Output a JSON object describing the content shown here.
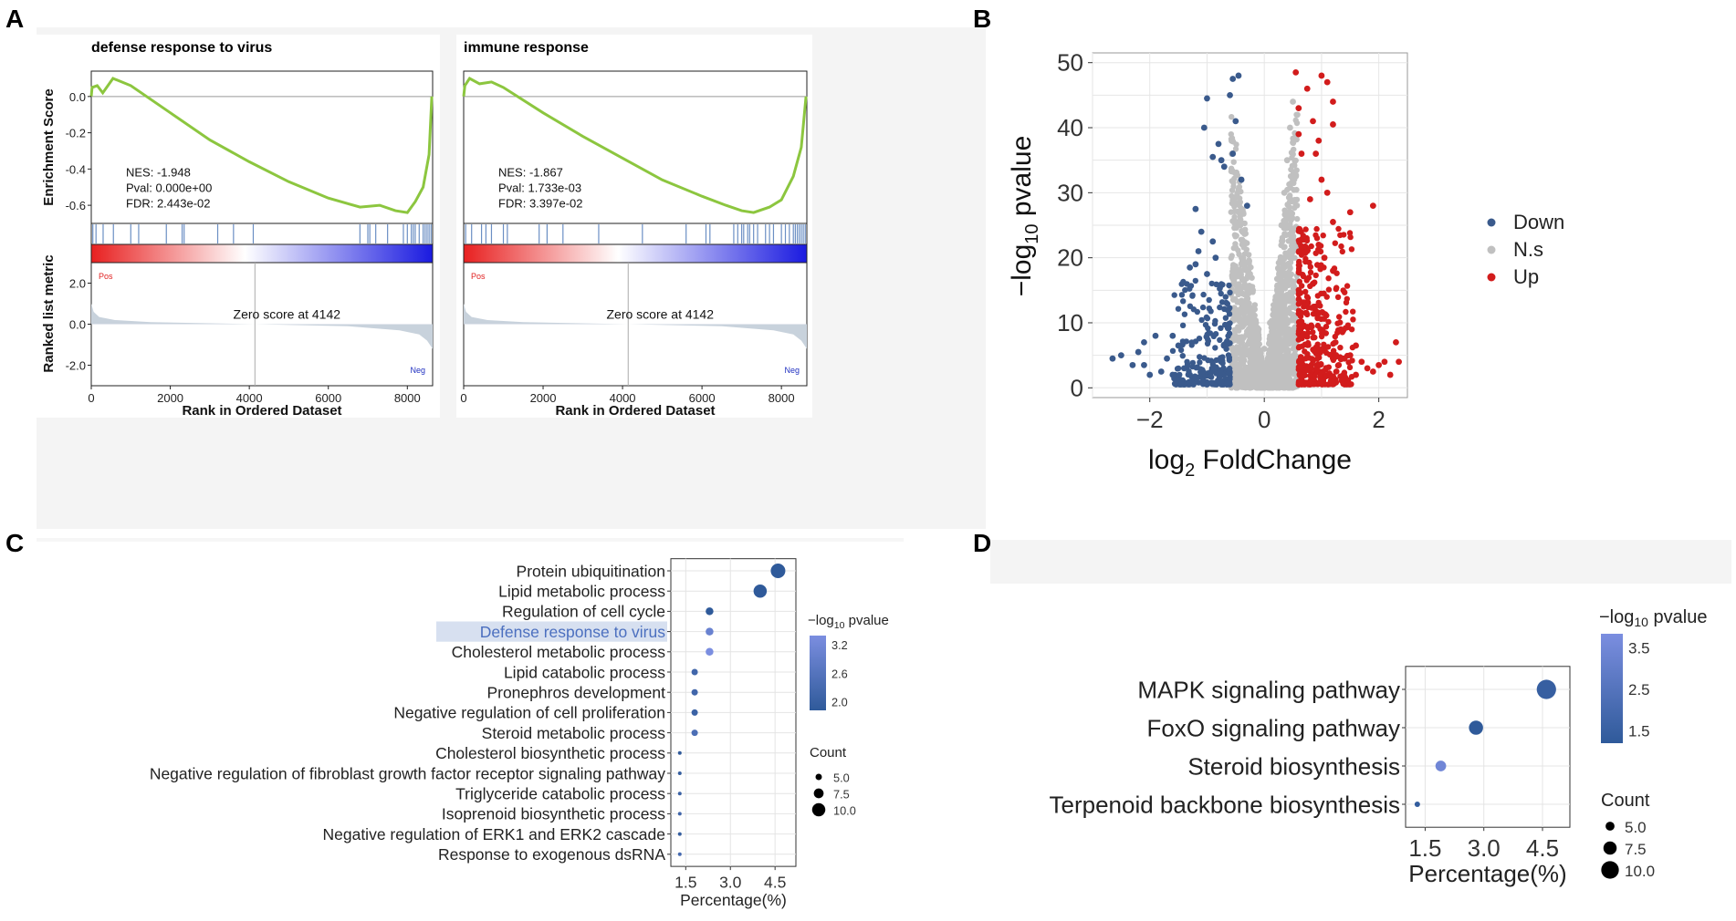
{
  "panel_labels": {
    "a": "A",
    "b": "B",
    "c": "C",
    "d": "D"
  },
  "colors": {
    "gsea_line": "#8cc63f",
    "down": "#3a5a8c",
    "ns": "#c0c0c0",
    "up": "#d21c1c",
    "pos_text": "#e02020",
    "neg_text": "#2030c0",
    "ranked_fill": "#c8d2dc",
    "highlight": "#d7e0f0",
    "dot_light": "#7b8ee0",
    "dot_dark": "#2f5a9a"
  },
  "chart_data": [
    {
      "type": "line",
      "panel": "A-left",
      "title": "defense response to virus",
      "ylabel": "Enrichment Score",
      "ylabel2": "Ranked list metric",
      "xlabel": "Rank in Ordered Dataset",
      "xlim": [
        0,
        8640
      ],
      "ylim": [
        -0.7,
        0.14
      ],
      "xticks": [
        "0",
        "2000",
        "4000",
        "6000",
        "8000"
      ],
      "yticks": [
        "0.0",
        "-0.2",
        "-0.4",
        "-0.6"
      ],
      "rank_yticks": [
        "2.0",
        "0.0",
        "-2.0"
      ],
      "stats": [
        "NES: -1.948",
        "Pval: 0.000e+00",
        "FDR: 2.443e-02"
      ],
      "pos_label": "Pos",
      "neg_label": "Neg",
      "zero_score": "Zero score at 4142",
      "zero_rank": 4142,
      "curve": [
        [
          0,
          0
        ],
        [
          20,
          0.05
        ],
        [
          150,
          0.06
        ],
        [
          290,
          0.02
        ],
        [
          550,
          0.1
        ],
        [
          1000,
          0.06
        ],
        [
          2000,
          -0.09
        ],
        [
          3000,
          -0.24
        ],
        [
          4000,
          -0.36
        ],
        [
          5000,
          -0.47
        ],
        [
          6000,
          -0.56
        ],
        [
          6800,
          -0.61
        ],
        [
          7300,
          -0.6
        ],
        [
          7700,
          -0.63
        ],
        [
          8000,
          -0.64
        ],
        [
          8200,
          -0.58
        ],
        [
          8400,
          -0.5
        ],
        [
          8550,
          -0.32
        ],
        [
          8620,
          0.0
        ]
      ],
      "hits": [
        40,
        120,
        300,
        560,
        1000,
        1200,
        1900,
        2300,
        2350,
        3200,
        3600,
        4100,
        6800,
        7000,
        7050,
        7200,
        7500,
        7900,
        8000,
        8100,
        8150,
        8200,
        8300,
        8400,
        8450,
        8500,
        8550,
        8600
      ]
    },
    {
      "type": "line",
      "panel": "A-right",
      "title": "immune response",
      "ylabel": "",
      "ylabel2": "",
      "xlabel": "Rank in Ordered Dataset",
      "xlim": [
        0,
        8640
      ],
      "ylim": [
        -0.7,
        0.14
      ],
      "xticks": [
        "0",
        "2000",
        "4000",
        "6000",
        "8000"
      ],
      "yticks": [],
      "rank_yticks": [],
      "stats": [
        "NES: -1.867",
        "Pval: 1.733e-03",
        "FDR: 3.397e-02"
      ],
      "pos_label": "Pos",
      "neg_label": "Neg",
      "zero_score": "Zero score at 4142",
      "zero_rank": 4142,
      "curve": [
        [
          0,
          0
        ],
        [
          30,
          0.06
        ],
        [
          150,
          0.1
        ],
        [
          400,
          0.07
        ],
        [
          700,
          0.08
        ],
        [
          1000,
          0.05
        ],
        [
          2000,
          -0.09
        ],
        [
          3000,
          -0.22
        ],
        [
          4000,
          -0.34
        ],
        [
          5000,
          -0.46
        ],
        [
          6000,
          -0.55
        ],
        [
          6600,
          -0.6
        ],
        [
          7000,
          -0.63
        ],
        [
          7300,
          -0.64
        ],
        [
          7700,
          -0.61
        ],
        [
          8000,
          -0.57
        ],
        [
          8300,
          -0.44
        ],
        [
          8500,
          -0.28
        ],
        [
          8620,
          0.0
        ]
      ],
      "hits": [
        50,
        200,
        450,
        560,
        700,
        1000,
        1100,
        1900,
        2100,
        2500,
        3400,
        4500,
        5600,
        6100,
        6200,
        6800,
        6900,
        7000,
        7050,
        7150,
        7200,
        7300,
        7400,
        7600,
        7700,
        7800,
        8000,
        8100,
        8200,
        8300,
        8350,
        8400,
        8450,
        8500,
        8550,
        8600
      ]
    },
    {
      "type": "scatter",
      "panel": "B",
      "xlabel_main": "log",
      "xlabel_sub": "2",
      "xlabel_rest": " FoldChange",
      "ylabel_pre": "−log",
      "ylabel_sub": "10",
      "ylabel_rest": " pvalue",
      "xlim": [
        -3,
        2.5
      ],
      "ylim": [
        -1.5,
        51.5
      ],
      "xticks": [
        -2,
        0,
        2
      ],
      "yticks": [
        0,
        10,
        20,
        30,
        40,
        50
      ],
      "xtick_labels": [
        "−2",
        "0",
        "2"
      ],
      "ytick_labels": [
        "0",
        "10",
        "20",
        "30",
        "40",
        "50"
      ],
      "legend": [
        "Down",
        "N.s",
        "Up"
      ],
      "highlights": {
        "down": [
          [
            -0.55,
            47.5
          ],
          [
            -0.45,
            48
          ],
          [
            -0.6,
            45
          ],
          [
            -0.5,
            41
          ],
          [
            -0.55,
            36
          ],
          [
            -0.7,
            34
          ],
          [
            -0.4,
            32
          ],
          [
            -0.3,
            28
          ],
          [
            -1.0,
            44.5
          ],
          [
            -1.05,
            40
          ],
          [
            -0.8,
            37.5
          ],
          [
            -0.75,
            35
          ],
          [
            -0.9,
            35.5
          ],
          [
            -1.2,
            27.5
          ],
          [
            -1.1,
            24
          ],
          [
            -0.9,
            22.5
          ],
          [
            -1.15,
            21
          ],
          [
            -1.2,
            19
          ],
          [
            -1.3,
            18.5
          ],
          [
            -0.85,
            20
          ],
          [
            -1.0,
            17.5
          ]
        ],
        "up": [
          [
            0.55,
            48.5
          ],
          [
            0.6,
            43
          ],
          [
            0.6,
            39
          ],
          [
            0.75,
            46
          ],
          [
            0.85,
            41
          ],
          [
            0.65,
            36
          ],
          [
            0.95,
            38
          ],
          [
            1.0,
            48
          ],
          [
            1.1,
            47
          ],
          [
            1.2,
            44
          ],
          [
            1.2,
            40.5
          ],
          [
            0.9,
            36
          ],
          [
            1.0,
            32
          ],
          [
            1.1,
            30
          ],
          [
            0.8,
            29
          ],
          [
            1.9,
            28
          ],
          [
            1.5,
            27
          ],
          [
            1.2,
            25.5
          ],
          [
            0.95,
            22
          ],
          [
            1.05,
            20
          ],
          [
            1.2,
            18
          ],
          [
            0.85,
            16
          ],
          [
            2.3,
            7
          ],
          [
            2.35,
            4
          ]
        ],
        "ns": [
          [
            -0.1,
            9
          ],
          [
            0.1,
            10
          ],
          [
            0.0,
            6
          ],
          [
            0.3,
            25
          ],
          [
            0.35,
            30
          ],
          [
            0.4,
            35
          ],
          [
            0.45,
            40
          ],
          [
            0.5,
            44
          ],
          [
            -0.35,
            22
          ],
          [
            -0.45,
            27
          ],
          [
            0.3,
            20
          ],
          [
            -0.2,
            15
          ],
          [
            0.2,
            14
          ]
        ],
        "down_far": [
          [
            -2.65,
            4.5
          ],
          [
            -2.5,
            5
          ],
          [
            -2.3,
            3.5
          ],
          [
            -2.2,
            5.5
          ],
          [
            -2.1,
            7
          ],
          [
            -1.9,
            8
          ],
          [
            -1.6,
            8
          ],
          [
            -1.5,
            6.5
          ],
          [
            -1.4,
            3
          ],
          [
            -1.8,
            2.5
          ],
          [
            -2.0,
            2
          ],
          [
            -1.6,
            2
          ],
          [
            -1.3,
            2
          ],
          [
            -1.2,
            1.5
          ],
          [
            -2.1,
            3.5
          ],
          [
            -1.7,
            4.5
          ]
        ],
        "up_far": [
          [
            1.5,
            5
          ],
          [
            1.7,
            4
          ],
          [
            1.8,
            3
          ],
          [
            1.9,
            2.5
          ],
          [
            2.0,
            3.5
          ],
          [
            2.2,
            2
          ],
          [
            1.6,
            2
          ],
          [
            1.4,
            4.5
          ],
          [
            1.3,
            3.5
          ],
          [
            1.6,
            6.5
          ],
          [
            2.1,
            4
          ]
        ]
      }
    },
    {
      "type": "scatter",
      "panel": "C",
      "xlabel": "Percentage(%)",
      "xlim": [
        1.0,
        5.2
      ],
      "xticks": [
        "1.5",
        "3.0",
        "4.5"
      ],
      "xtick_values": [
        1.5,
        3.0,
        4.5
      ],
      "legend_color_title_pre": "−log",
      "legend_color_title_sub": "10",
      "legend_color_title_rest": " pvalue",
      "legend_color_ticks": [
        "3.2",
        "2.6",
        "2.0"
      ],
      "legend_size_title": "Count",
      "legend_size_ticks": [
        "5.0",
        "7.5",
        "10.0"
      ],
      "highlighted_category": "Defense response to virus",
      "categories": [
        "Protein ubiquitination",
        "Lipid metabolic process",
        "Regulation of cell cycle",
        "Defense response to virus",
        "Cholesterol metabolic process",
        "Lipid catabolic process",
        "Pronephros development",
        "Negative regulation of cell proliferation",
        "Steroid metabolic process",
        "Cholesterol biosynthetic process",
        "Negative regulation of fibroblast growth factor receptor signaling pathway",
        "Triglyceride catabolic process",
        "Isoprenoid biosynthetic process",
        "Negative regulation of ERK1 and ERK2 cascade",
        "Response to exogenous dsRNA"
      ],
      "percentage": [
        4.6,
        4.0,
        2.3,
        2.3,
        2.3,
        1.8,
        1.8,
        1.8,
        1.8,
        1.3,
        1.3,
        1.3,
        1.3,
        1.3,
        1.3
      ],
      "count": [
        11,
        10,
        6,
        6,
        6,
        5,
        5,
        5,
        5,
        3,
        3,
        3,
        3,
        3,
        3
      ],
      "neglog10p": [
        2.0,
        2.0,
        2.0,
        3.0,
        3.3,
        2.3,
        2.3,
        2.2,
        2.5,
        2.0,
        2.1,
        2.2,
        2.3,
        2.1,
        2.4
      ]
    },
    {
      "type": "scatter",
      "panel": "D",
      "xlabel": "Percentage(%)",
      "xlim": [
        1.0,
        5.2
      ],
      "xticks": [
        "1.5",
        "3.0",
        "4.5"
      ],
      "xtick_values": [
        1.5,
        3.0,
        4.5
      ],
      "legend_color_title_pre": "−log",
      "legend_color_title_sub": "10",
      "legend_color_title_rest": " pvalue",
      "legend_color_ticks": [
        "3.5",
        "2.5",
        "1.5"
      ],
      "legend_size_title": "Count",
      "legend_size_ticks": [
        "5.0",
        "7.5",
        "10.0"
      ],
      "categories": [
        "MAPK signaling pathway",
        "FoxO signaling pathway",
        "Steroid biosynthesis",
        "Terpenoid backbone biosynthesis"
      ],
      "percentage": [
        4.6,
        2.8,
        1.9,
        1.3
      ],
      "count": [
        11,
        8,
        6,
        3
      ],
      "neglog10p": [
        1.7,
        1.5,
        3.2,
        1.6
      ]
    }
  ]
}
